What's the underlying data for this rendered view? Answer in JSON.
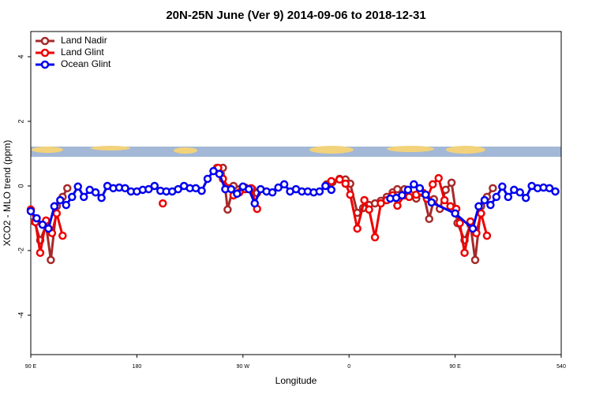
{
  "chart_data": {
    "type": "line",
    "title": "20N-25N June (Ver 9)   2014-09-06 to 2018-12-31",
    "x_label": "Longitude",
    "y_label": "XCO2 - MLO trend (ppm)",
    "xlim": [
      90,
      540
    ],
    "ylim": [
      -5.22,
      4.78
    ],
    "xticks": [
      {
        "value": 90,
        "label": "90 E"
      },
      180,
      {
        "value": 270,
        "label": "90 W"
      },
      {
        "value": 360,
        "label": "0"
      },
      {
        "value": 450,
        "label": "90 E"
      },
      540
    ],
    "yticks": [
      -4,
      -2,
      0,
      2,
      4
    ],
    "legend": "top-left",
    "series": [
      {
        "name": "Land Nadir",
        "color": "#a52a2a",
        "x": [
          93,
          98,
          103,
          107,
          112,
          117,
          121,
          180,
          248,
          253,
          257,
          262,
          272,
          278,
          282,
          310,
          341,
          346,
          352,
          357,
          361,
          367,
          372,
          377,
          382,
          387,
          392,
          397,
          401,
          407,
          412,
          417,
          423,
          428,
          432,
          437,
          442,
          447,
          452,
          458,
          463,
          467,
          472,
          477,
          482
        ],
        "values": [
          -1.1,
          -1.68,
          -1.22,
          -2.29,
          -0.63,
          -0.34,
          -0.07,
          null,
          0.56,
          0.56,
          -0.73,
          0,
          -0.05,
          -0.1,
          -0.22,
          null,
          0.05,
          0.12,
          0.22,
          0.2,
          0.07,
          -0.83,
          -0.68,
          -0.59,
          -0.54,
          -0.46,
          -0.34,
          -0.2,
          -0.1,
          -0.1,
          -0.27,
          -0.39,
          -0.22,
          -1.02,
          -0.41,
          -0.71,
          -0.12,
          0.1,
          -1.15,
          -1.68,
          -1.2,
          -2.29,
          -0.63,
          -0.34,
          -0.07
        ]
      },
      {
        "name": "Land Glint",
        "color": "#ee0000",
        "x": [
          90,
          94,
          98,
          103,
          108,
          112,
          117,
          160,
          202,
          225,
          249,
          253,
          258,
          262,
          267,
          272,
          277,
          282,
          315,
          345,
          352,
          357,
          361,
          367,
          373,
          377,
          382,
          387,
          392,
          397,
          401,
          407,
          411,
          417,
          421,
          426,
          431,
          436,
          441,
          446,
          451,
          454,
          458,
          463,
          468,
          472,
          477
        ],
        "values": [
          -0.73,
          -1.12,
          -2.07,
          -1.07,
          -1.46,
          -0.85,
          -1.54,
          null,
          -0.54,
          null,
          0.56,
          0.22,
          -0.07,
          -0.29,
          -0.2,
          -0.1,
          -0.07,
          -0.71,
          null,
          0.15,
          0.2,
          0.07,
          -0.27,
          -1.32,
          -0.44,
          -0.73,
          -1.59,
          -0.54,
          -0.44,
          -0.29,
          -0.61,
          -0.29,
          -0.34,
          -0.27,
          -0.17,
          -0.39,
          0.05,
          0.24,
          -0.44,
          -0.63,
          -0.71,
          -1.15,
          -2.07,
          -1.1,
          -1.46,
          -0.85,
          -1.54
        ]
      },
      {
        "name": "Ocean Glint",
        "color": "#0000ee",
        "x": [
          90,
          95,
          100,
          105,
          110,
          115,
          120,
          125,
          130,
          135,
          140,
          145,
          150,
          155,
          160,
          165,
          170,
          175,
          180,
          185,
          190,
          195,
          200,
          205,
          210,
          215,
          220,
          225,
          230,
          235,
          240,
          245,
          250,
          255,
          260,
          265,
          270,
          275,
          280,
          285,
          290,
          295,
          300,
          305,
          310,
          315,
          320,
          325,
          330,
          335,
          340,
          345,
          370,
          395,
          400,
          405,
          410,
          415,
          420,
          425,
          430,
          450,
          465,
          470,
          475,
          480,
          485,
          490,
          495,
          500,
          505,
          510,
          515,
          520,
          525,
          530,
          535
        ],
        "values": [
          -0.78,
          -1.0,
          -1.2,
          -1.32,
          -0.63,
          -0.44,
          -0.59,
          -0.34,
          -0.02,
          -0.34,
          -0.12,
          -0.2,
          -0.37,
          0,
          -0.07,
          -0.05,
          -0.07,
          -0.17,
          -0.17,
          -0.12,
          -0.1,
          0,
          -0.15,
          -0.17,
          -0.17,
          -0.1,
          0,
          -0.07,
          -0.07,
          -0.15,
          0.22,
          0.46,
          0.37,
          -0.1,
          -0.1,
          -0.24,
          -0.02,
          -0.1,
          -0.54,
          -0.1,
          -0.17,
          -0.2,
          -0.05,
          0.05,
          -0.17,
          -0.1,
          -0.17,
          -0.17,
          -0.2,
          -0.17,
          0,
          -0.12,
          null,
          -0.39,
          -0.37,
          -0.29,
          -0.12,
          0.05,
          -0.07,
          -0.27,
          -0.51,
          -0.85,
          -1.32,
          -0.63,
          -0.44,
          -0.59,
          -0.34,
          -0.02,
          -0.34,
          -0.12,
          -0.2,
          -0.37,
          0,
          -0.07,
          -0.05,
          -0.07,
          -0.17
        ]
      }
    ]
  }
}
